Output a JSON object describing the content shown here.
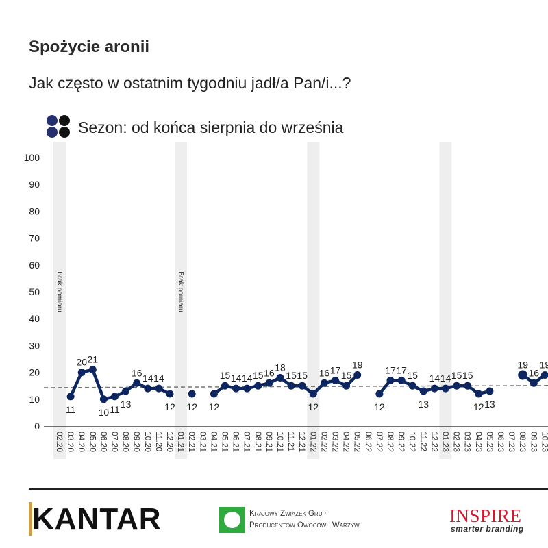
{
  "header": {
    "title": "Spożycie aronii",
    "subtitle": "Jak często w ostatnim tygodniu jadł/a Pan/i...?",
    "season_label": "Sezon: od końca sierpnia do września"
  },
  "colors": {
    "line": "#0d2660",
    "season_dot_blue": "#24306e",
    "season_dot_black": "#111111",
    "band": "#eeeeee",
    "average": "#777777"
  },
  "chart_data": {
    "type": "line",
    "title": "",
    "ylim": [
      0,
      100
    ],
    "yticks": [
      0,
      10,
      20,
      30,
      40,
      50,
      60,
      70,
      80,
      90,
      100
    ],
    "categories": [
      "02.20",
      "03.20",
      "04.20",
      "05.20",
      "06.20",
      "07.20",
      "08.20",
      "09.20",
      "10.20",
      "11.20",
      "12.20",
      "01.21",
      "02.21",
      "03.21",
      "04.21",
      "05.21",
      "06.21",
      "07.21",
      "08.21",
      "09.21",
      "10.21",
      "11.21",
      "12.21",
      "01.22",
      "02.22",
      "03.22",
      "04.22",
      "05.22",
      "06.22",
      "07.22",
      "08.22",
      "09.22",
      "10.22",
      "11.22",
      "12.22",
      "01.23",
      "02.23",
      "03.23",
      "04.23",
      "05.23",
      "06.23",
      "07.23",
      "08.23",
      "09.23",
      "10.23"
    ],
    "values": [
      null,
      11,
      20,
      21,
      10,
      11,
      13,
      16,
      14,
      14,
      12,
      null,
      12,
      null,
      12,
      15,
      14,
      14,
      15,
      16,
      18,
      15,
      15,
      12,
      16,
      17,
      15,
      19,
      null,
      12,
      17,
      17,
      15,
      13,
      14,
      14,
      15,
      15,
      12,
      13,
      null,
      null,
      19,
      16,
      19
    ],
    "average_line": {
      "start": 14.3,
      "end": 15.1,
      "style": "dashed"
    },
    "shaded_months": [
      "02.20",
      "01.21",
      "01.22",
      "01.23"
    ],
    "band_annotations": [
      {
        "month": "02.20",
        "text": "Brak pomiaru"
      },
      {
        "month": "01.21",
        "text": "Brak pomiaru"
      }
    ],
    "grid": false
  },
  "footer": {
    "kantar": "KANTAR",
    "kzg_line1": "Krajowy Związek Grup",
    "kzg_line2": "Producentów Owoców i Warzyw",
    "inspire": "INSPIRE",
    "inspire_sub": "smarter branding"
  }
}
